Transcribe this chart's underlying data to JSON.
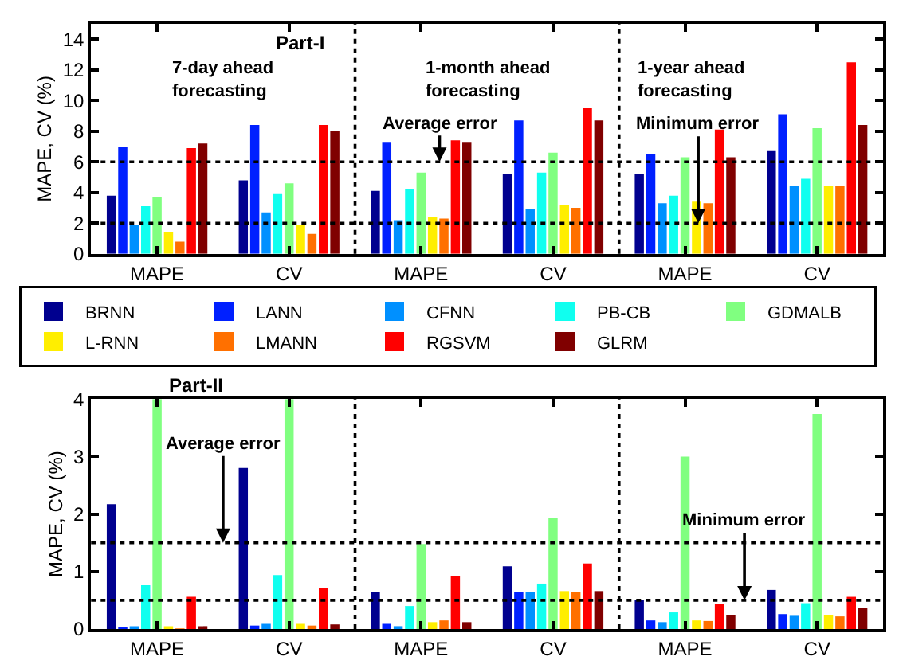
{
  "chart_data": [
    {
      "type": "bar",
      "title": "Part-I",
      "ylabel": "MAPE, CV (%)",
      "categories": [
        "MAPE",
        "CV",
        "MAPE",
        "CV",
        "MAPE",
        "CV"
      ],
      "ylim": [
        0,
        15
      ],
      "yticks": [
        0,
        2,
        4,
        6,
        8,
        10,
        12,
        14
      ],
      "series": [
        {
          "color": "#00008f",
          "values": [
            3.8,
            4.8,
            4.1,
            5.2,
            5.2,
            6.7
          ]
        },
        {
          "color": "#0020ff",
          "values": [
            7.0,
            8.4,
            7.3,
            8.7,
            6.5,
            9.1
          ]
        },
        {
          "color": "#0090ff",
          "values": [
            1.9,
            2.7,
            2.2,
            2.9,
            3.3,
            4.4
          ]
        },
        {
          "color": "#10ffef",
          "values": [
            3.1,
            3.9,
            4.2,
            5.3,
            3.8,
            4.9
          ]
        },
        {
          "color": "#80ff80",
          "values": [
            3.7,
            4.6,
            5.3,
            6.6,
            6.3,
            8.2
          ]
        },
        {
          "color": "#ffee00",
          "values": [
            1.4,
            1.9,
            2.4,
            3.2,
            3.4,
            4.4
          ]
        },
        {
          "color": "#ff7000",
          "values": [
            0.8,
            1.3,
            2.3,
            3.0,
            3.3,
            4.4
          ]
        },
        {
          "color": "#ff0000",
          "values": [
            6.9,
            8.4,
            7.4,
            9.5,
            8.1,
            12.5
          ]
        },
        {
          "color": "#800000",
          "values": [
            7.2,
            8.0,
            7.3,
            8.7,
            6.3,
            8.4
          ]
        }
      ],
      "ref_lines": [
        {
          "axis": "y",
          "value": 6,
          "color": "#000000",
          "line_style": "dotted"
        },
        {
          "axis": "y",
          "value": 2,
          "color": "#000000",
          "line_style": "dotted"
        }
      ],
      "annotations": [
        "7-day ahead\nforecasting",
        "1-month ahead\nforecasting",
        "1-year ahead\nforecasting",
        {
          "text": "Average error",
          "y": 6
        },
        {
          "text": "Minimum error",
          "y": 2
        }
      ]
    },
    {
      "type": "bar",
      "title": "Part-II",
      "ylabel": "MAPE, CV (%)",
      "categories": [
        "MAPE",
        "CV",
        "MAPE",
        "CV",
        "MAPE",
        "CV"
      ],
      "ylim": [
        0,
        4
      ],
      "yticks": [
        0,
        1,
        2,
        3,
        4
      ],
      "legend": "center",
      "series": [
        {
          "name": "BRNN",
          "color": "#00008f",
          "values": [
            2.17,
            2.8,
            0.65,
            1.09,
            0.5,
            0.68
          ]
        },
        {
          "name": "LANN",
          "color": "#0020ff",
          "values": [
            0.03,
            0.06,
            0.09,
            0.64,
            0.15,
            0.26
          ]
        },
        {
          "name": "CFNN",
          "color": "#0090ff",
          "values": [
            0.05,
            0.09,
            0.05,
            0.64,
            0.12,
            0.23
          ]
        },
        {
          "name": "PB-CB",
          "color": "#10ffef",
          "values": [
            0.76,
            0.94,
            0.4,
            0.79,
            0.29,
            0.45
          ]
        },
        {
          "name": "GDMALB",
          "color": "#80ff80",
          "values": [
            4,
            4,
            1.48,
            1.94,
            3.0,
            3.74
          ]
        },
        {
          "name": "L-RNN",
          "color": "#ffee00",
          "values": [
            0.05,
            0.09,
            0.12,
            0.66,
            0.15,
            0.24
          ]
        },
        {
          "name": "LMANN",
          "color": "#ff7000",
          "values": [
            0.01,
            0.06,
            0.15,
            0.65,
            0.14,
            0.22
          ]
        },
        {
          "name": "RGSVM",
          "color": "#ff0000",
          "values": [
            0.56,
            0.72,
            0.92,
            1.14,
            0.44,
            0.56
          ]
        },
        {
          "name": "GLRM",
          "color": "#800000",
          "values": [
            0.05,
            0.08,
            0.12,
            0.66,
            0.24,
            0.37
          ]
        }
      ],
      "ref_lines": [
        {
          "axis": "y",
          "value": 1.5,
          "color": "#000000",
          "line_style": "dotted"
        },
        {
          "axis": "y",
          "value": 0.5,
          "color": "#000000",
          "line_style": "dotted"
        }
      ],
      "annotations": [
        {
          "text": "Average error",
          "y": 1.5
        },
        {
          "text": "Minimum error",
          "y": 0.5
        }
      ]
    }
  ]
}
